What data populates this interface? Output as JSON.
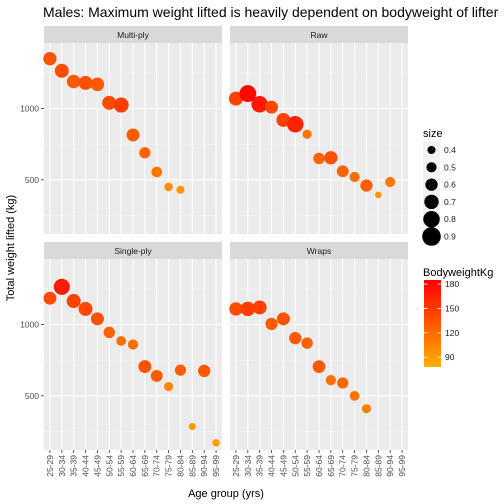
{
  "chart_data": {
    "type": "scatter",
    "title": "Males: Maximum weight lifted is heavily dependent on bodyweight of lifter",
    "xlabel": "Age group (yrs)",
    "ylabel": "Total weight lifted (kg)",
    "categories": [
      "25-29",
      "30-34",
      "35-39",
      "40-44",
      "45-49",
      "50-54",
      "55-59",
      "60-64",
      "65-69",
      "70-74",
      "75-79",
      "80-84",
      "85-89",
      "90-94",
      "95-99"
    ],
    "ylim": [
      120,
      1460
    ],
    "yticks": [
      500,
      1000
    ],
    "facets": [
      {
        "name": "Multi-ply",
        "points": [
          {
            "x": "25-29",
            "y": 1350,
            "size": 0.65,
            "bw": 135
          },
          {
            "x": "30-34",
            "y": 1265,
            "size": 0.68,
            "bw": 138
          },
          {
            "x": "35-39",
            "y": 1190,
            "size": 0.66,
            "bw": 130
          },
          {
            "x": "40-44",
            "y": 1180,
            "size": 0.68,
            "bw": 137
          },
          {
            "x": "45-49",
            "y": 1170,
            "size": 0.66,
            "bw": 130
          },
          {
            "x": "50-54",
            "y": 1040,
            "size": 0.68,
            "bw": 140
          },
          {
            "x": "55-59",
            "y": 1025,
            "size": 0.73,
            "bw": 148
          },
          {
            "x": "60-64",
            "y": 815,
            "size": 0.63,
            "bw": 130
          },
          {
            "x": "65-69",
            "y": 690,
            "size": 0.55,
            "bw": 125
          },
          {
            "x": "70-74",
            "y": 555,
            "size": 0.52,
            "bw": 115
          },
          {
            "x": "75-79",
            "y": 450,
            "size": 0.42,
            "bw": 100
          },
          {
            "x": "80-84",
            "y": 430,
            "size": 0.4,
            "bw": 95
          }
        ]
      },
      {
        "name": "Raw",
        "points": [
          {
            "x": "25-29",
            "y": 1070,
            "size": 0.68,
            "bw": 145
          },
          {
            "x": "30-34",
            "y": 1105,
            "size": 0.82,
            "bw": 180
          },
          {
            "x": "35-39",
            "y": 1030,
            "size": 0.8,
            "bw": 170
          },
          {
            "x": "40-44",
            "y": 1010,
            "size": 0.63,
            "bw": 142
          },
          {
            "x": "45-49",
            "y": 920,
            "size": 0.68,
            "bw": 145
          },
          {
            "x": "50-54",
            "y": 890,
            "size": 0.8,
            "bw": 165
          },
          {
            "x": "55-59",
            "y": 820,
            "size": 0.45,
            "bw": 115
          },
          {
            "x": "60-64",
            "y": 650,
            "size": 0.56,
            "bw": 125
          },
          {
            "x": "65-69",
            "y": 655,
            "size": 0.65,
            "bw": 135
          },
          {
            "x": "70-74",
            "y": 560,
            "size": 0.58,
            "bw": 125
          },
          {
            "x": "75-79",
            "y": 520,
            "size": 0.5,
            "bw": 118
          },
          {
            "x": "80-84",
            "y": 460,
            "size": 0.6,
            "bw": 128
          },
          {
            "x": "85-89",
            "y": 395,
            "size": 0.33,
            "bw": 95
          },
          {
            "x": "90-94",
            "y": 485,
            "size": 0.5,
            "bw": 112
          }
        ]
      },
      {
        "name": "Single-ply",
        "points": [
          {
            "x": "25-29",
            "y": 1185,
            "size": 0.63,
            "bw": 140
          },
          {
            "x": "30-34",
            "y": 1265,
            "size": 0.78,
            "bw": 168
          },
          {
            "x": "35-39",
            "y": 1165,
            "size": 0.68,
            "bw": 145
          },
          {
            "x": "40-44",
            "y": 1110,
            "size": 0.68,
            "bw": 142
          },
          {
            "x": "45-49",
            "y": 1040,
            "size": 0.63,
            "bw": 135
          },
          {
            "x": "50-54",
            "y": 945,
            "size": 0.56,
            "bw": 125
          },
          {
            "x": "55-59",
            "y": 885,
            "size": 0.48,
            "bw": 118
          },
          {
            "x": "60-64",
            "y": 860,
            "size": 0.5,
            "bw": 120
          },
          {
            "x": "65-69",
            "y": 705,
            "size": 0.63,
            "bw": 135
          },
          {
            "x": "70-74",
            "y": 640,
            "size": 0.58,
            "bw": 130
          },
          {
            "x": "75-79",
            "y": 565,
            "size": 0.45,
            "bw": 105
          },
          {
            "x": "80-84",
            "y": 680,
            "size": 0.55,
            "bw": 128
          },
          {
            "x": "85-89",
            "y": 285,
            "size": 0.35,
            "bw": 92
          },
          {
            "x": "90-94",
            "y": 675,
            "size": 0.6,
            "bw": 132
          },
          {
            "x": "95-99",
            "y": 170,
            "size": 0.37,
            "bw": 88
          }
        ]
      },
      {
        "name": "Wraps",
        "points": [
          {
            "x": "25-29",
            "y": 1110,
            "size": 0.65,
            "bw": 140
          },
          {
            "x": "30-34",
            "y": 1110,
            "size": 0.7,
            "bw": 148
          },
          {
            "x": "35-39",
            "y": 1120,
            "size": 0.68,
            "bw": 145
          },
          {
            "x": "40-44",
            "y": 1005,
            "size": 0.6,
            "bw": 130
          },
          {
            "x": "45-49",
            "y": 1040,
            "size": 0.63,
            "bw": 135
          },
          {
            "x": "50-54",
            "y": 905,
            "size": 0.6,
            "bw": 130
          },
          {
            "x": "55-59",
            "y": 870,
            "size": 0.56,
            "bw": 125
          },
          {
            "x": "60-64",
            "y": 705,
            "size": 0.62,
            "bw": 130
          },
          {
            "x": "65-69",
            "y": 610,
            "size": 0.5,
            "bw": 118
          },
          {
            "x": "70-74",
            "y": 590,
            "size": 0.55,
            "bw": 122
          },
          {
            "x": "75-79",
            "y": 500,
            "size": 0.48,
            "bw": 115
          },
          {
            "x": "80-84",
            "y": 410,
            "size": 0.45,
            "bw": 108
          }
        ]
      }
    ],
    "size_legend": {
      "title": "size",
      "values": [
        0.4,
        0.5,
        0.6,
        0.7,
        0.8,
        0.9
      ],
      "labels": [
        "0.4",
        "0.5",
        "0.6",
        "0.7",
        "0.8",
        "0.9"
      ]
    },
    "color_legend": {
      "title": "BodyweightKg",
      "range": [
        78,
        185
      ],
      "ticks": [
        90,
        120,
        150,
        180
      ],
      "low_color": "#FFB000",
      "high_color": "#FF0000"
    },
    "grid": true,
    "panel_background": "#EBEBEB",
    "strip_background": "#D9D9D9"
  }
}
